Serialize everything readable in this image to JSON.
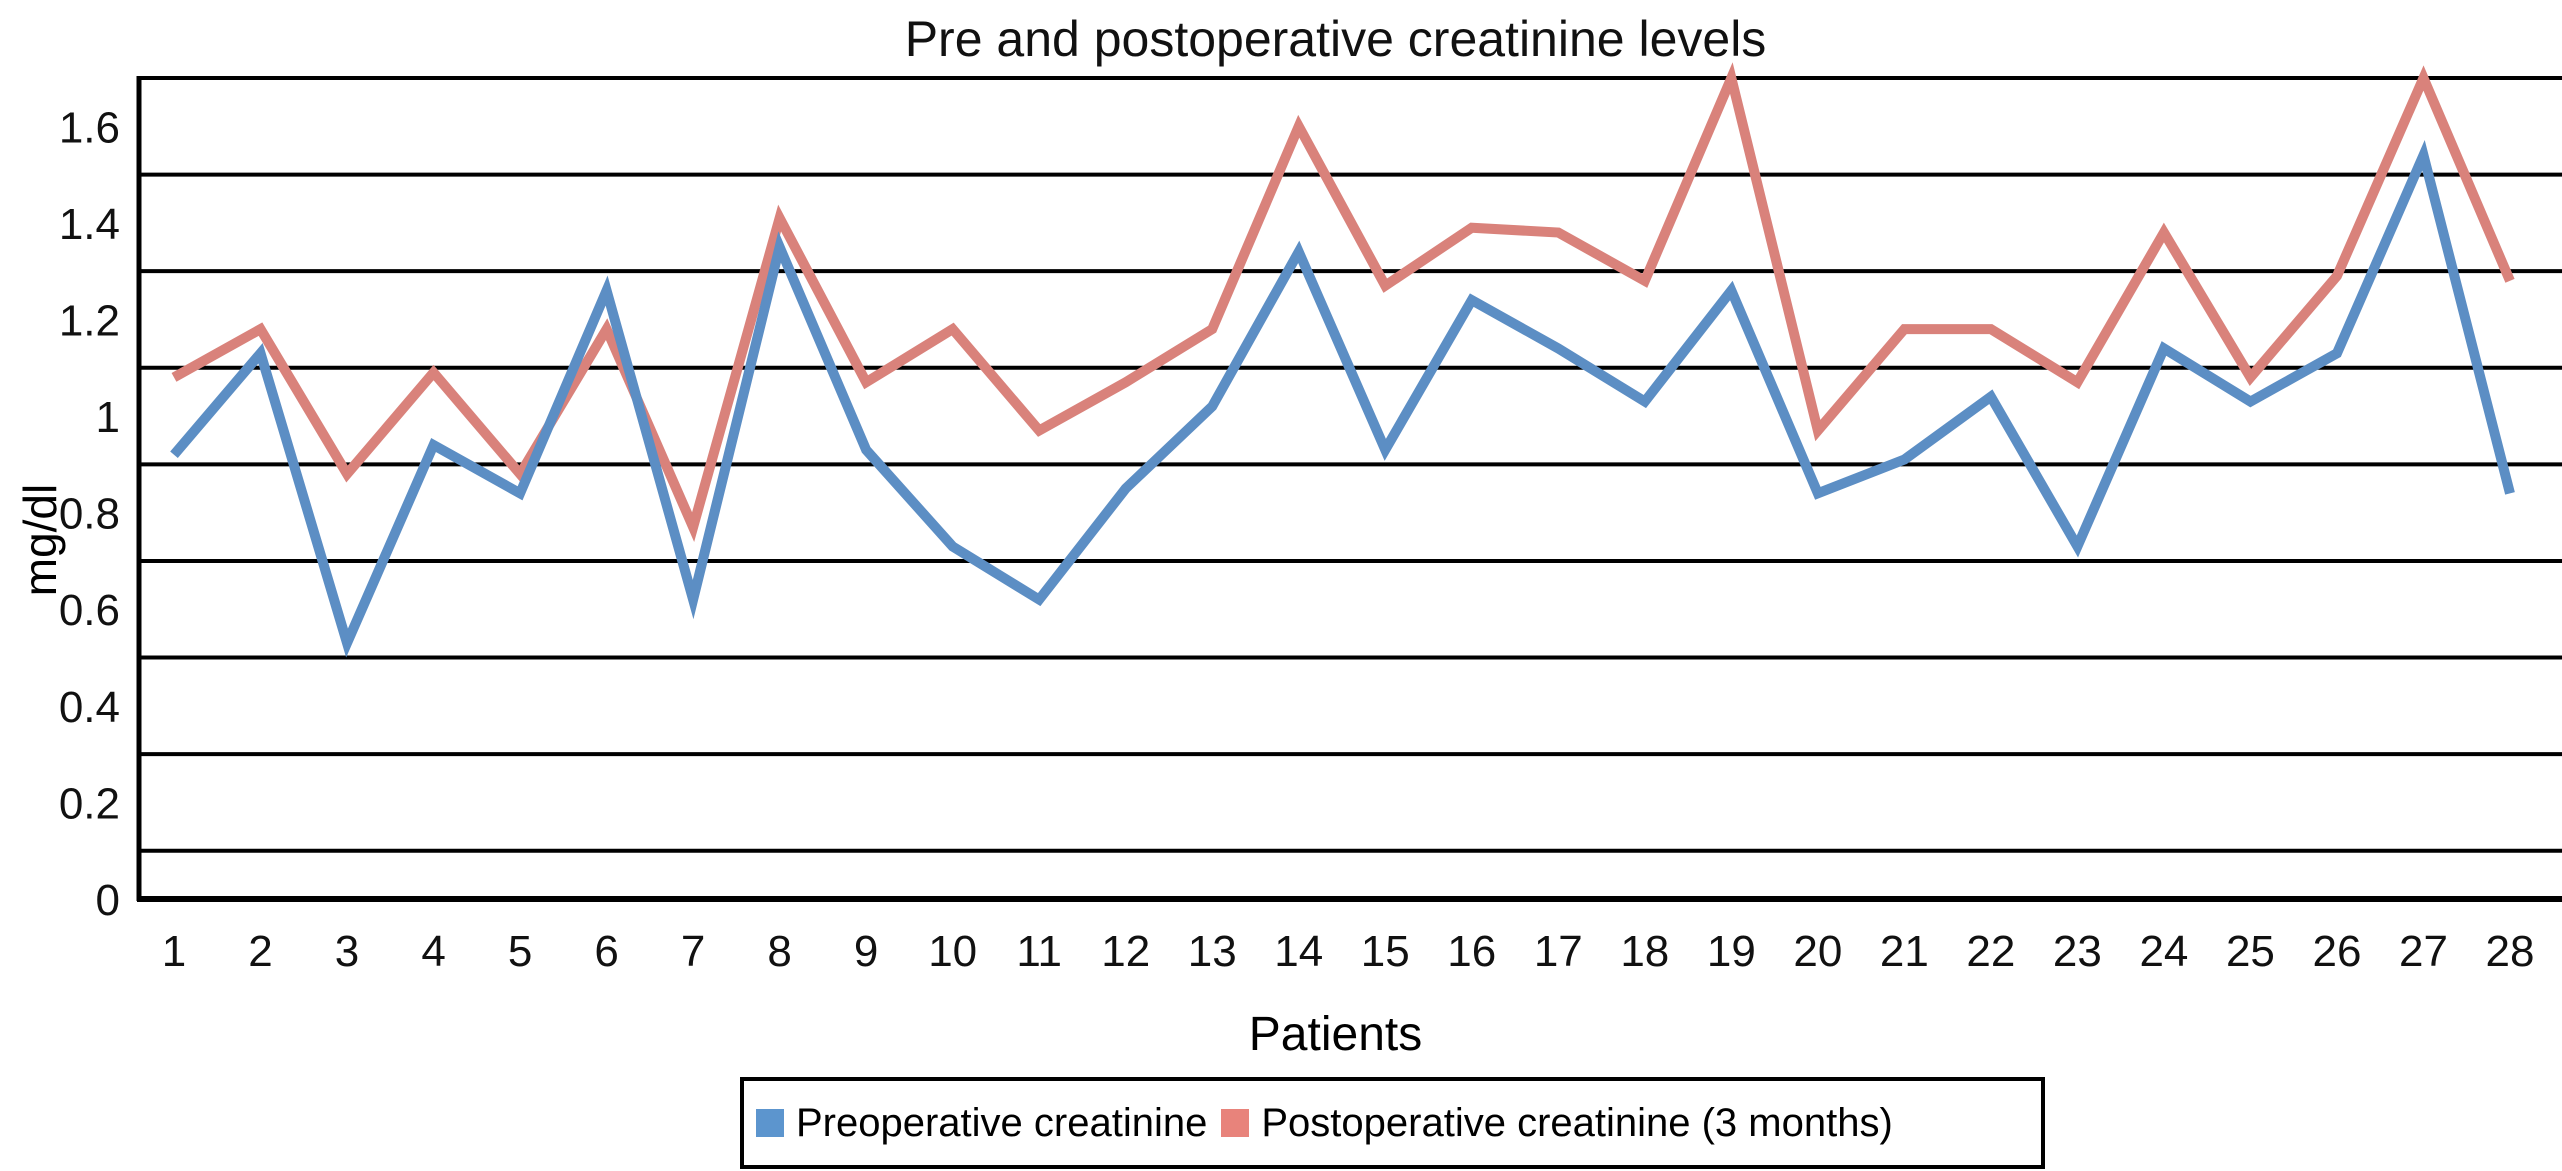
{
  "chart_data": {
    "type": "line",
    "title": "Pre and postoperative creatinine levels",
    "xlabel": "Patients",
    "ylabel": "mg/dl",
    "categories": [
      "1",
      "2",
      "3",
      "4",
      "5",
      "6",
      "7",
      "8",
      "9",
      "10",
      "11",
      "12",
      "13",
      "14",
      "15",
      "16",
      "17",
      "18",
      "19",
      "20",
      "21",
      "22",
      "23",
      "24",
      "25",
      "26",
      "27",
      "28"
    ],
    "series": [
      {
        "name": "Preoperative creatinine",
        "color": "#5C8EC4",
        "marker_color": "#5C95CE",
        "values": [
          0.92,
          1.13,
          0.53,
          0.94,
          0.84,
          1.26,
          0.62,
          1.35,
          0.93,
          0.73,
          0.62,
          0.85,
          1.02,
          1.34,
          0.93,
          1.24,
          1.14,
          1.03,
          1.26,
          0.84,
          0.91,
          1.04,
          0.73,
          1.14,
          1.03,
          1.13,
          1.54,
          0.84
        ]
      },
      {
        "name": "Postoperative creatinine (3 months)",
        "color": "#D9827B",
        "marker_color": "#E8837B",
        "values": [
          1.08,
          1.18,
          0.88,
          1.09,
          0.88,
          1.18,
          0.77,
          1.41,
          1.07,
          1.18,
          0.97,
          1.07,
          1.18,
          1.6,
          1.27,
          1.39,
          1.38,
          1.28,
          1.7,
          0.97,
          1.18,
          1.18,
          1.07,
          1.38,
          1.08,
          1.29,
          1.7,
          1.28
        ]
      }
    ],
    "ylim": [
      0,
      1.7
    ],
    "y_ticks": {
      "values": [
        0,
        0.2,
        0.4,
        0.6,
        0.8,
        1,
        1.2,
        1.4,
        1.6
      ],
      "labels": [
        "0",
        "0.2",
        "0.4",
        "0.6",
        "0.8",
        "1",
        "1.2",
        "1.4",
        "1.6"
      ]
    },
    "gridline_values": [
      0.1,
      0.3,
      0.5,
      0.7,
      0.9,
      1.1,
      1.3,
      1.5,
      1.7
    ],
    "grid_on": true,
    "grid_color": "#000000",
    "axis_color": "#000000",
    "legend_position": "bottom"
  }
}
